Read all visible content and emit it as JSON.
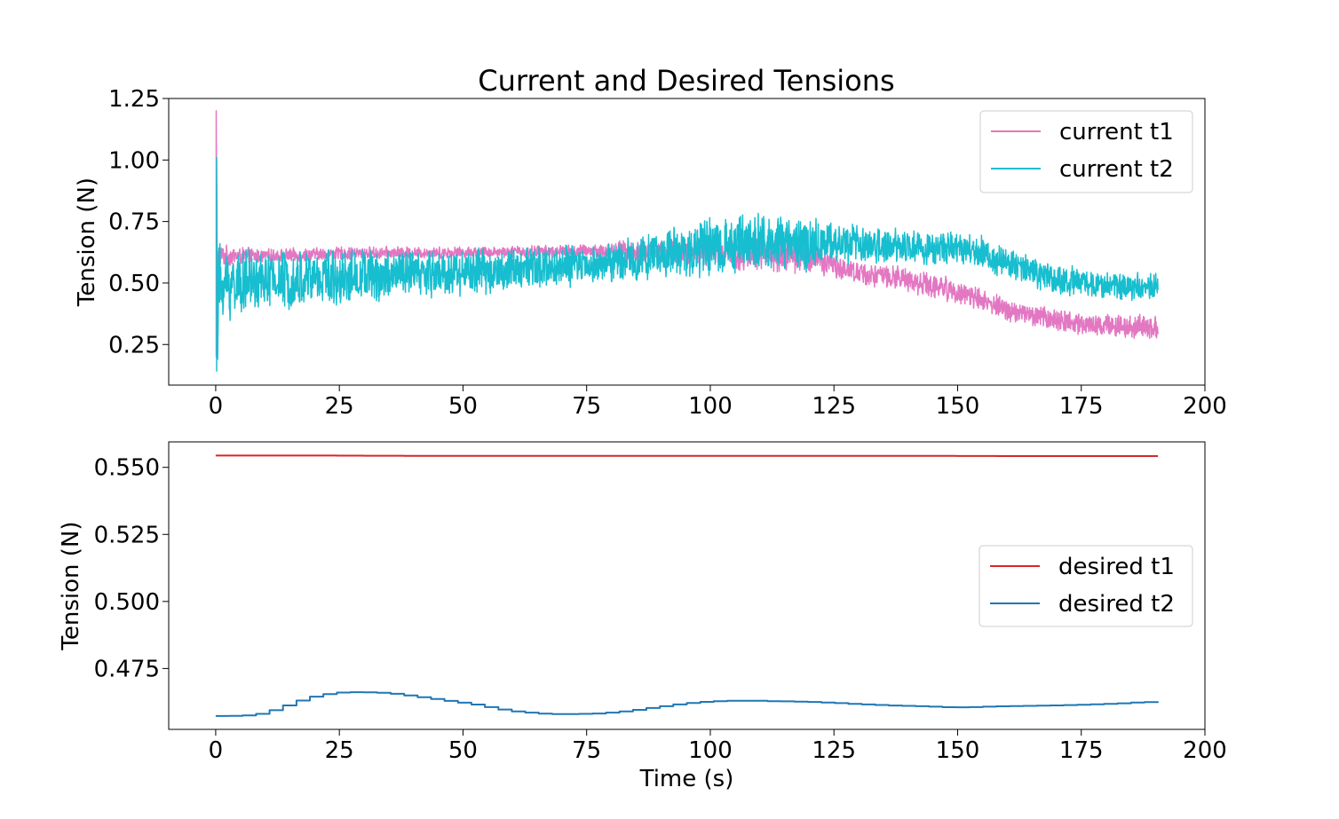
{
  "figure": {
    "title": "Current and Desired Tensions"
  },
  "chart_data": [
    {
      "type": "line",
      "title": "Current and Desired Tensions",
      "xlabel": "",
      "ylabel": "Tension (N)",
      "xlim": [
        -9.5,
        200
      ],
      "ylim": [
        0.085,
        1.25
      ],
      "xticks": [
        0,
        25,
        50,
        75,
        100,
        125,
        150,
        175,
        200
      ],
      "yticks": [
        0.25,
        0.5,
        0.75,
        1.0,
        1.25
      ],
      "ytick_labels": [
        "0.25",
        "0.50",
        "0.75",
        "1.00",
        "1.25"
      ],
      "grid": false,
      "legend_position": "top-right",
      "series": [
        {
          "name": "current t1",
          "color": "#e377c2",
          "spike": {
            "x": 0.1,
            "max": 1.2,
            "min": 0.2
          },
          "upper": {
            "x": [
              0.5,
              5,
              10,
              25,
              50,
              75,
              85,
              100,
              110,
              120,
              125,
              130,
              140,
              150,
              155,
              160,
              170,
              180,
              190.5
            ],
            "y": [
              0.66,
              0.65,
              0.64,
              0.65,
              0.65,
              0.66,
              0.68,
              0.7,
              0.71,
              0.68,
              0.62,
              0.59,
              0.57,
              0.52,
              0.48,
              0.44,
              0.4,
              0.38,
              0.37
            ]
          },
          "lower": {
            "x": [
              0.5,
              5,
              10,
              25,
              50,
              75,
              85,
              100,
              110,
              120,
              125,
              130,
              140,
              150,
              155,
              160,
              170,
              180,
              190.5
            ],
            "y": [
              0.56,
              0.57,
              0.58,
              0.59,
              0.6,
              0.6,
              0.58,
              0.55,
              0.54,
              0.53,
              0.52,
              0.49,
              0.46,
              0.41,
              0.38,
              0.34,
              0.3,
              0.27,
              0.27
            ]
          }
        },
        {
          "name": "current t2",
          "color": "#17becf",
          "spike": {
            "x": 0.2,
            "max": 1.01,
            "min": 0.14
          },
          "upper": {
            "x": [
              0.5,
              5,
              10,
              25,
              50,
              75,
              85,
              100,
              110,
              120,
              125,
              130,
              140,
              150,
              155,
              160,
              170,
              180,
              190.5
            ],
            "y": [
              0.68,
              0.65,
              0.64,
              0.65,
              0.65,
              0.66,
              0.7,
              0.77,
              0.8,
              0.78,
              0.76,
              0.74,
              0.72,
              0.71,
              0.7,
              0.65,
              0.58,
              0.55,
              0.55
            ]
          },
          "lower": {
            "x": [
              0.5,
              5,
              10,
              25,
              50,
              75,
              85,
              100,
              110,
              120,
              125,
              130,
              140,
              150,
              155,
              160,
              170,
              180,
              190.5
            ],
            "y": [
              0.3,
              0.36,
              0.38,
              0.4,
              0.44,
              0.48,
              0.5,
              0.52,
              0.53,
              0.54,
              0.56,
              0.57,
              0.57,
              0.56,
              0.55,
              0.5,
              0.45,
              0.43,
              0.42
            ]
          }
        }
      ]
    },
    {
      "type": "line",
      "title": "",
      "xlabel": "Time (s)",
      "ylabel": "Tension (N)",
      "xlim": [
        -9.5,
        200
      ],
      "ylim": [
        0.4523,
        0.5595
      ],
      "xticks": [
        0,
        25,
        50,
        75,
        100,
        125,
        150,
        175,
        200
      ],
      "yticks": [
        0.475,
        0.5,
        0.525,
        0.55
      ],
      "ytick_labels": [
        "0.475",
        "0.500",
        "0.525",
        "0.550"
      ],
      "grid": false,
      "legend_position": "center-right",
      "series": [
        {
          "name": "desired t1",
          "color": "#d62728",
          "x": [
            0,
            20,
            40,
            60,
            80,
            100,
            120,
            140,
            160,
            180,
            190.5
          ],
          "y": [
            0.5544,
            0.5544,
            0.5543,
            0.5543,
            0.5543,
            0.5543,
            0.5543,
            0.5543,
            0.5542,
            0.5542,
            0.5542
          ]
        },
        {
          "name": "desired t2",
          "color": "#1f77b4",
          "x": [
            0,
            5,
            8,
            11,
            14,
            17,
            20,
            24,
            28,
            32,
            36,
            40,
            44,
            48,
            52,
            56,
            60,
            64,
            68,
            72,
            76,
            80,
            84,
            88,
            92,
            96,
            100,
            104,
            108,
            112,
            116,
            120,
            124,
            128,
            132,
            136,
            140,
            144,
            148,
            152,
            156,
            160,
            164,
            168,
            172,
            176,
            180,
            184,
            188,
            190.5
          ],
          "y": [
            0.4573,
            0.4574,
            0.458,
            0.4595,
            0.4615,
            0.4635,
            0.465,
            0.466,
            0.4662,
            0.466,
            0.4655,
            0.4645,
            0.4635,
            0.4625,
            0.4615,
            0.46,
            0.459,
            0.4583,
            0.458,
            0.458,
            0.4582,
            0.4587,
            0.4595,
            0.4605,
            0.4615,
            0.4623,
            0.4628,
            0.463,
            0.463,
            0.4628,
            0.4627,
            0.4625,
            0.4622,
            0.4618,
            0.4615,
            0.4612,
            0.461,
            0.4608,
            0.4605,
            0.4606,
            0.4608,
            0.461,
            0.4611,
            0.4612,
            0.4614,
            0.4616,
            0.4618,
            0.4622,
            0.4625,
            0.4627
          ]
        }
      ]
    }
  ]
}
